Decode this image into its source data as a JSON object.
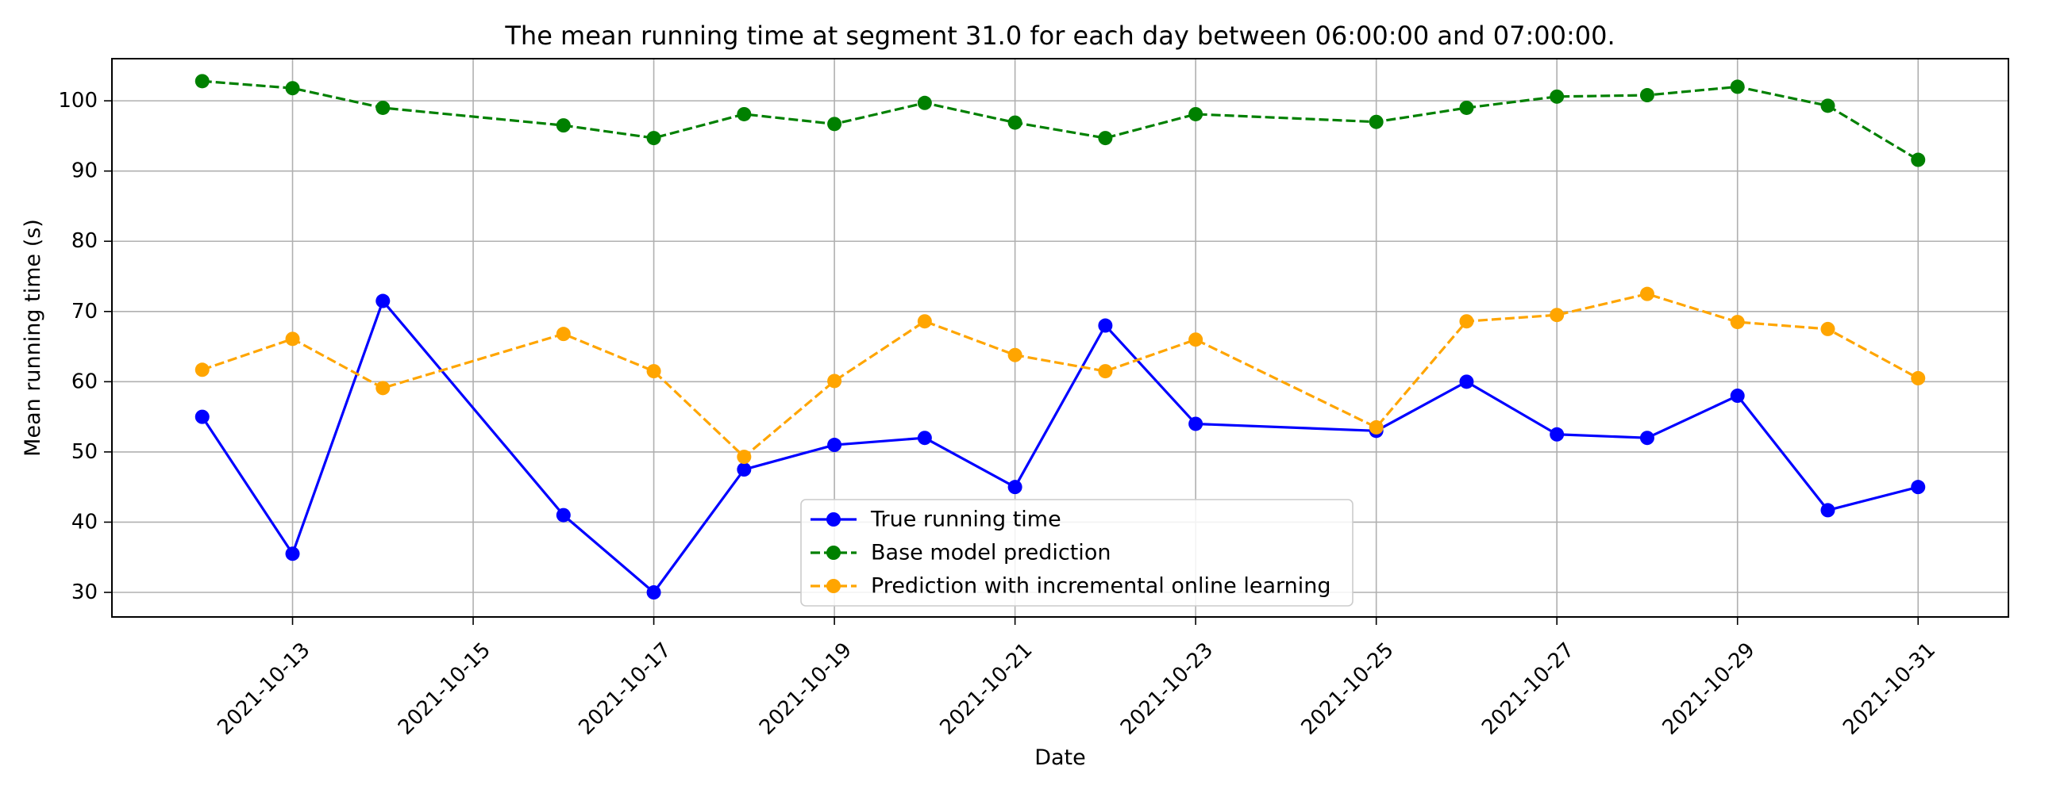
{
  "chart_data": {
    "type": "line",
    "title": "The mean running time at segment 31.0 for each day between 06:00:00 and 07:00:00.",
    "xlabel": "Date",
    "ylabel": "Mean running time (s)",
    "ylim": [
      26.5,
      106
    ],
    "xlim": [
      "2021-10-11",
      "2021-11-01"
    ],
    "grid": true,
    "legend_position": "bottom-center",
    "x_ticks": [
      "2021-10-13",
      "2021-10-15",
      "2021-10-17",
      "2021-10-19",
      "2021-10-21",
      "2021-10-23",
      "2021-10-25",
      "2021-10-27",
      "2021-10-29",
      "2021-10-31"
    ],
    "y_ticks": [
      30,
      40,
      50,
      60,
      70,
      80,
      90,
      100
    ],
    "x": [
      "2021-10-12",
      "2021-10-13",
      "2021-10-14",
      "2021-10-16",
      "2021-10-17",
      "2021-10-18",
      "2021-10-19",
      "2021-10-20",
      "2021-10-21",
      "2021-10-22",
      "2021-10-23",
      "2021-10-25",
      "2021-10-26",
      "2021-10-27",
      "2021-10-28",
      "2021-10-29",
      "2021-10-30",
      "2021-10-31"
    ],
    "series": [
      {
        "name": "True running time",
        "color": "#0000ff",
        "line_style": "solid",
        "values": [
          55,
          35.5,
          71.5,
          41,
          30,
          47.5,
          51,
          52,
          45,
          68,
          54,
          53,
          60,
          52.5,
          52,
          58,
          41.7,
          45
        ]
      },
      {
        "name": "Base model prediction",
        "color": "#008000",
        "line_style": "dashed",
        "values": [
          102.8,
          101.8,
          99,
          96.5,
          94.7,
          98.1,
          96.7,
          99.7,
          96.9,
          94.7,
          98.1,
          97,
          99,
          100.6,
          100.8,
          102,
          99.3,
          91.6
        ]
      },
      {
        "name": "Prediction with incremental online learning",
        "color": "#ffa500",
        "line_style": "dashed",
        "values": [
          61.7,
          66.1,
          59.1,
          66.8,
          61.5,
          49.3,
          60.1,
          68.6,
          63.8,
          61.5,
          66,
          53.5,
          68.6,
          69.5,
          72.5,
          68.5,
          67.5,
          60.5
        ]
      }
    ]
  }
}
